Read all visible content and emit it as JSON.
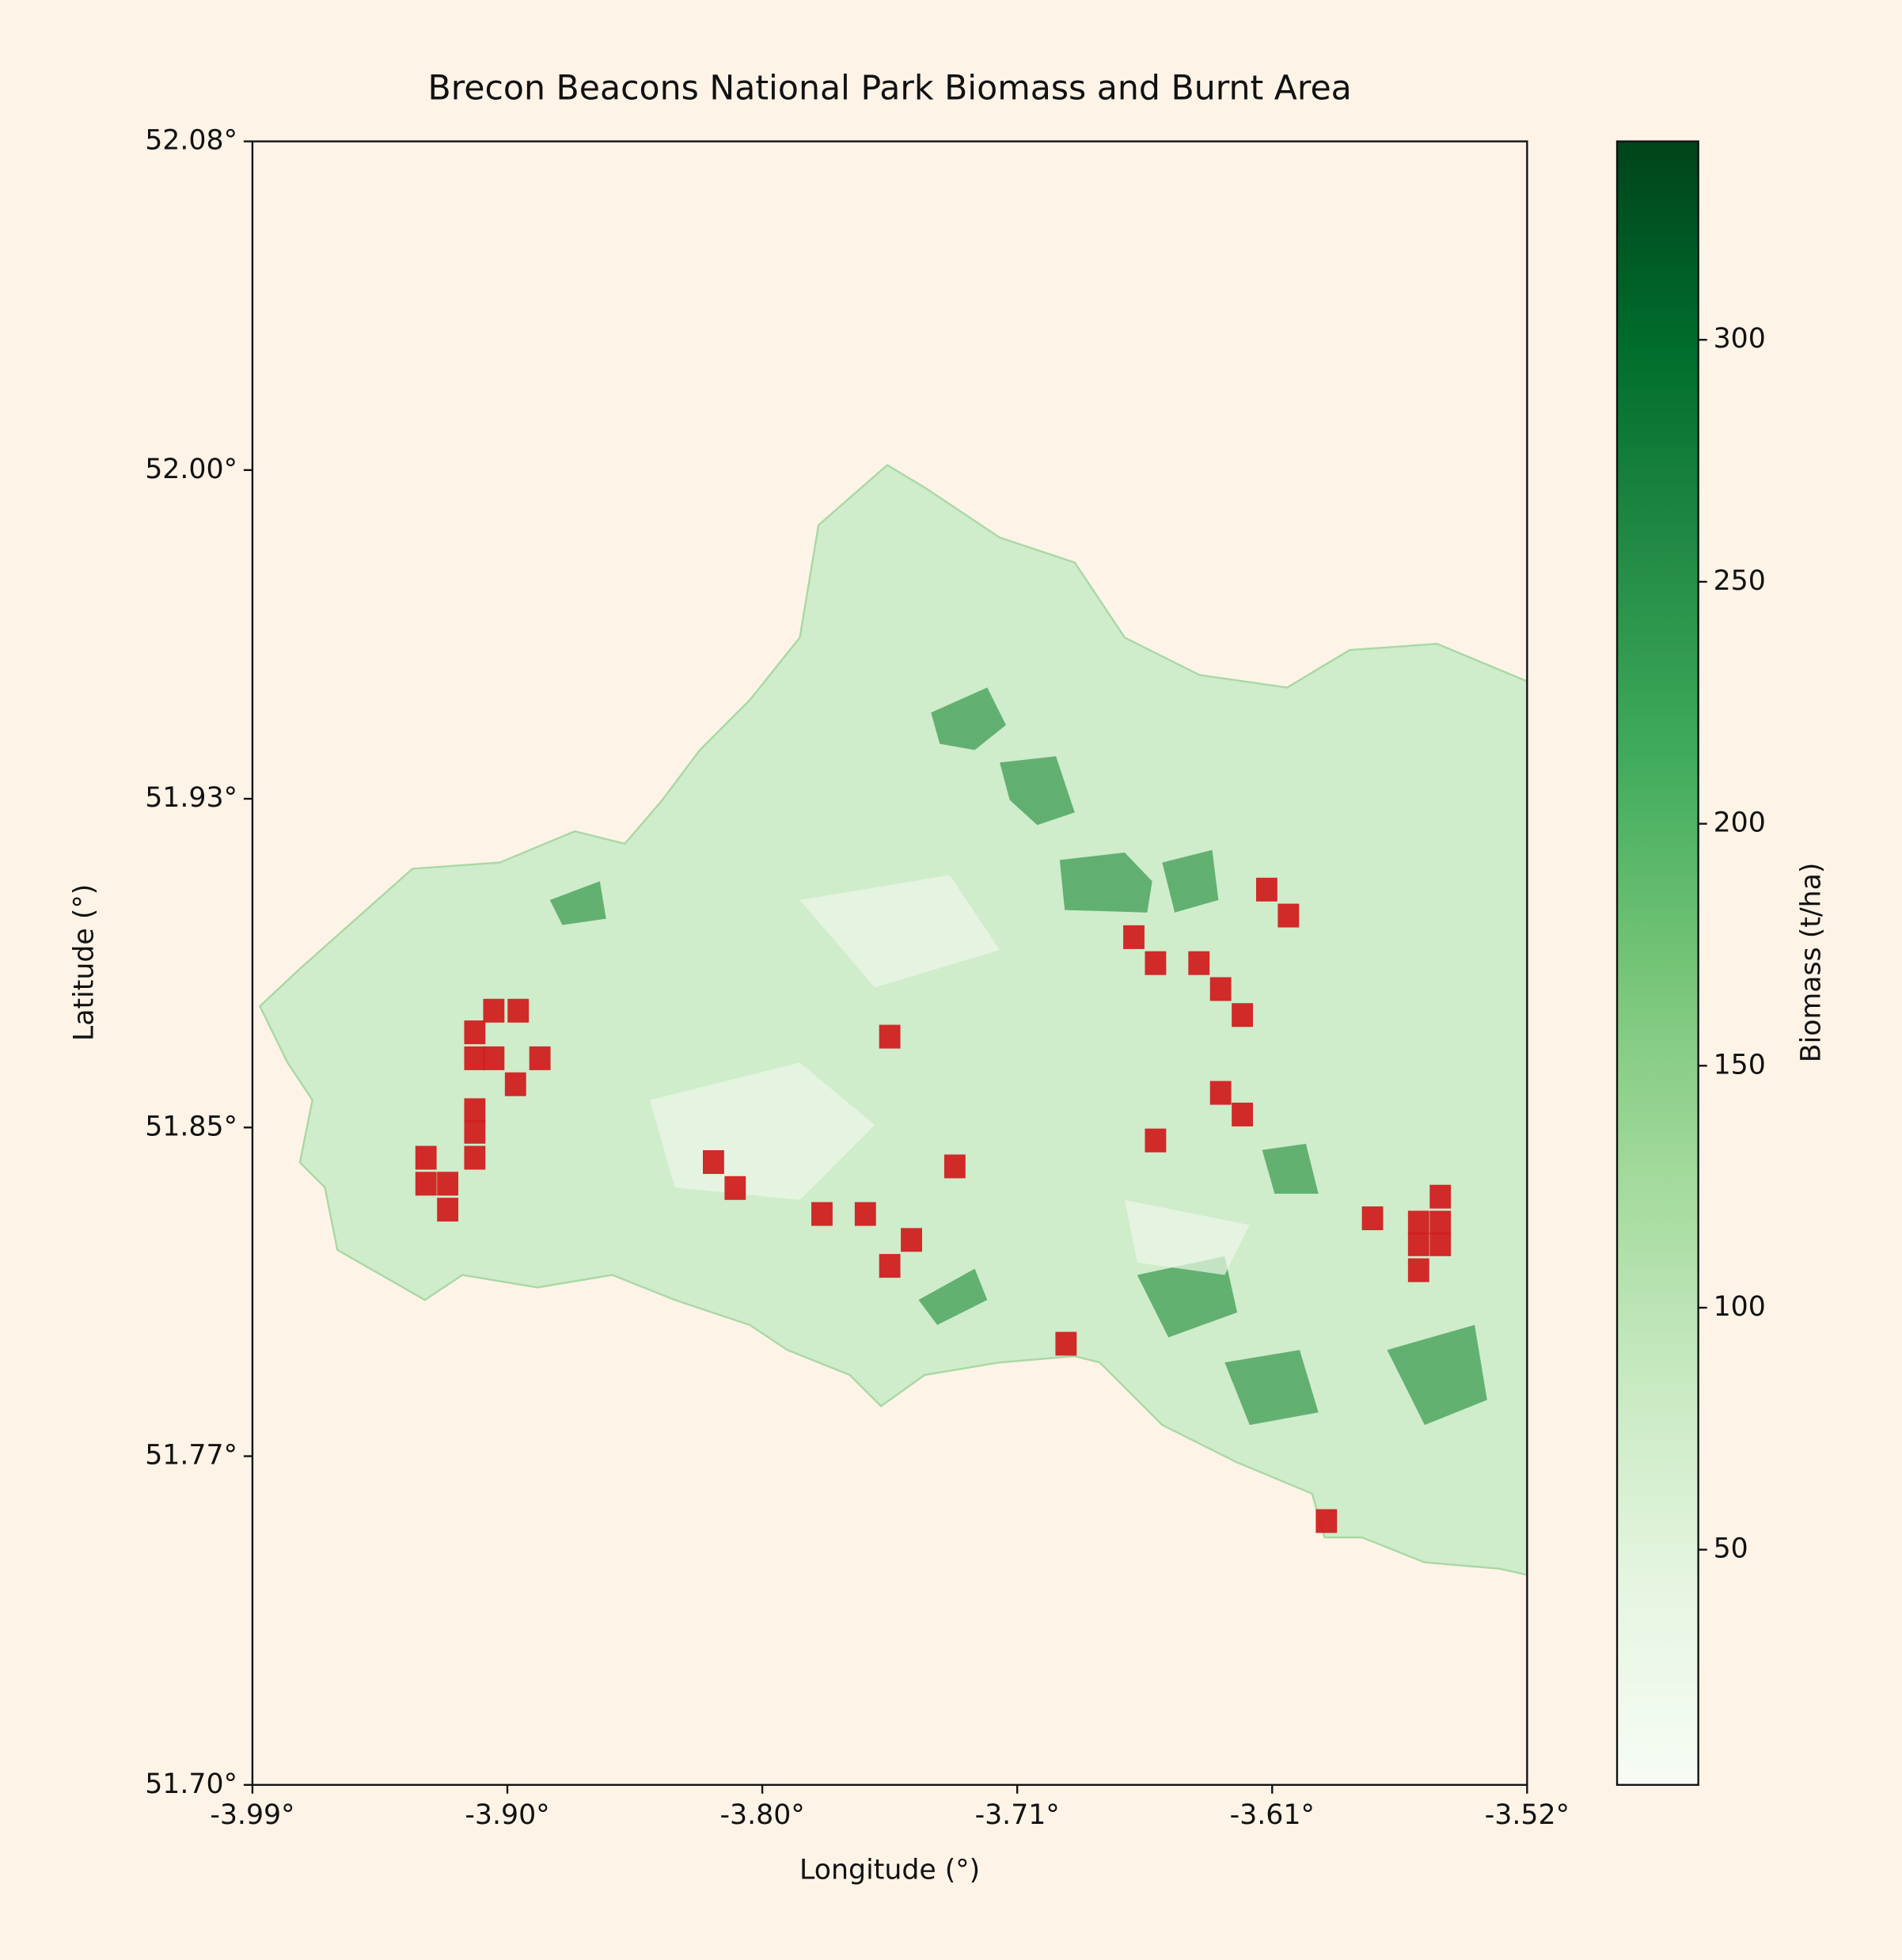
{
  "chart_data": {
    "type": "map",
    "title": "Brecon Beacons National Park Biomass and Burnt Area",
    "x_label": "Longitude (°)",
    "y_label": "Latitude (°)",
    "xlim": [
      -3.99,
      -3.52
    ],
    "ylim": [
      51.698,
      52.078
    ],
    "xticks": [
      {
        "value": -3.99,
        "label": "-3.99°"
      },
      {
        "value": -3.896,
        "label": "-3.90°"
      },
      {
        "value": -3.802,
        "label": "-3.80°"
      },
      {
        "value": -3.708,
        "label": "-3.71°"
      },
      {
        "value": -3.614,
        "label": "-3.61°"
      },
      {
        "value": -3.52,
        "label": "-3.52°"
      }
    ],
    "yticks": [
      {
        "value": 51.698,
        "label": "51.70°"
      },
      {
        "value": 51.774,
        "label": "51.77°"
      },
      {
        "value": 51.85,
        "label": "51.85°"
      },
      {
        "value": 51.926,
        "label": "51.93°"
      },
      {
        "value": 52.002,
        "label": "52.00°"
      },
      {
        "value": 52.078,
        "label": "52.08°"
      }
    ],
    "colorbar": {
      "label": "Biomass (t/ha)",
      "lim": [
        1.4,
        341
      ],
      "ticks": [
        50,
        100,
        150,
        200,
        250,
        300
      ]
    },
    "burnt": {
      "color": "#d02020",
      "x": [
        -3.901,
        -3.892,
        -3.908,
        -3.908,
        -3.901,
        -3.884,
        -3.893,
        -3.908,
        -3.908,
        -3.908,
        -3.926,
        -3.926,
        -3.918,
        -3.918,
        -3.82,
        -3.812,
        -3.755,
        -3.78,
        -3.764,
        -3.747,
        -3.755,
        -3.731,
        -3.69,
        -3.665,
        -3.657,
        -3.641,
        -3.633,
        -3.625,
        -3.616,
        -3.608,
        -3.633,
        -3.625,
        -3.657,
        -3.577,
        -3.552,
        -3.56,
        -3.552,
        -3.56,
        -3.552,
        -3.56,
        -3.594
      ],
      "y": [
        51.877,
        51.877,
        51.872,
        51.866,
        51.866,
        51.866,
        51.86,
        51.854,
        51.849,
        51.843,
        51.843,
        51.837,
        51.837,
        51.831,
        51.842,
        51.836,
        51.871,
        51.83,
        51.83,
        51.824,
        51.818,
        51.841,
        51.8,
        51.894,
        51.888,
        51.888,
        51.882,
        51.876,
        51.905,
        51.899,
        51.858,
        51.853,
        51.847,
        51.829,
        51.834,
        51.828,
        51.828,
        51.823,
        51.823,
        51.817,
        51.759
      ]
    }
  }
}
